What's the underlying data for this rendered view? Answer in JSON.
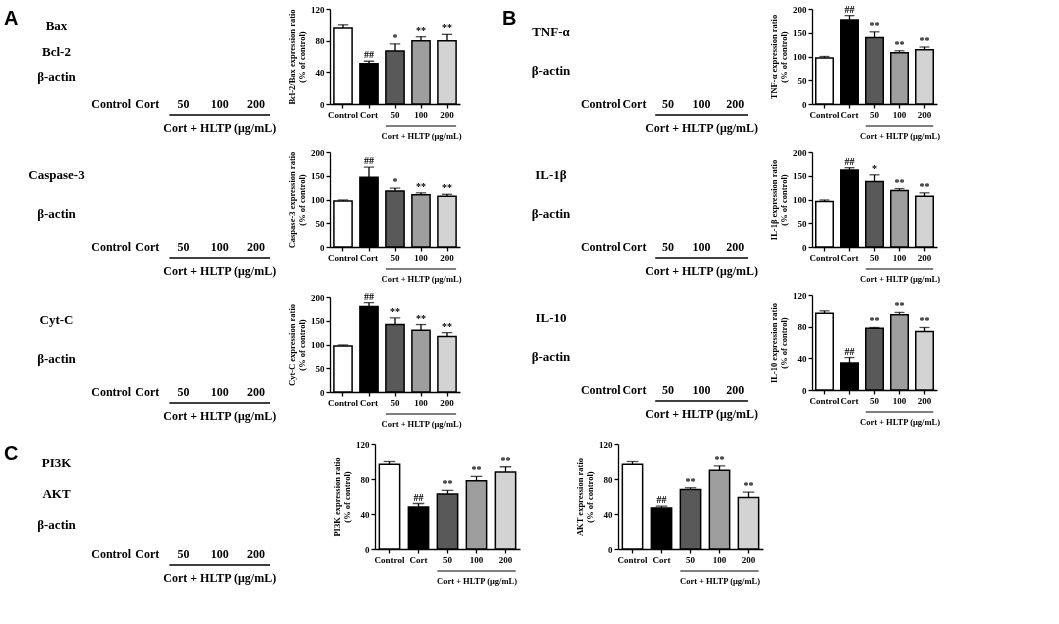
{
  "chart_data": [
    {
      "type": "other",
      "title": "A",
      "y_categories": [
        "Bax",
        "Bcl-2",
        "β-actin"
      ],
      "categories": [
        "Control",
        "Cort",
        "50",
        "100",
        "200"
      ],
      "xlabel": "Cort + HLTP (μg/mL)"
    },
    {
      "type": "bar",
      "ylabel": "Bcl-2/Bax expression ratio\n(% of control)",
      "xlabel": "Cort + HLTP (μg/mL)",
      "categories": [
        "Control",
        "Cort",
        "50",
        "100",
        "200"
      ],
      "values": [
        96,
        51,
        67,
        80,
        80
      ],
      "errors": [
        4,
        3,
        9,
        5,
        8
      ],
      "colors": [
        "#ffffff",
        "#000000",
        "#595959",
        "#9e9e9e",
        "#d3d3d3"
      ],
      "ylim": [
        0,
        120
      ],
      "yticks": [
        0,
        40,
        80,
        120
      ],
      "annotations": [
        {
          "text": "##",
          "x": "Cort",
          "y": 54
        },
        {
          "text": "*",
          "x": "50",
          "y": 76
        },
        {
          "text": "**",
          "x": "100",
          "y": 85
        },
        {
          "text": "**",
          "x": "200",
          "y": 88
        }
      ]
    },
    {
      "type": "other",
      "y_categories": [
        "Caspase-3",
        "β-actin"
      ],
      "categories": [
        "Control",
        "Cort",
        "50",
        "100",
        "200"
      ],
      "xlabel": "Cort + HLTP (μg/mL)"
    },
    {
      "type": "bar",
      "ylabel": "Caspase-3 expression ratio\n(% of control)",
      "xlabel": "Cort + HLTP (μg/mL)",
      "categories": [
        "Control",
        "Cort",
        "50",
        "100",
        "200"
      ],
      "values": [
        97,
        147,
        118,
        110,
        107
      ],
      "errors": [
        2,
        21,
        6,
        4,
        4
      ],
      "colors": [
        "#ffffff",
        "#000000",
        "#595959",
        "#9e9e9e",
        "#d3d3d3"
      ],
      "ylim": [
        0,
        200
      ],
      "yticks": [
        0,
        50,
        100,
        150,
        200
      ],
      "annotations": [
        {
          "text": "##",
          "x": "Cort",
          "y": 168
        },
        {
          "text": "*",
          "x": "50",
          "y": 124
        },
        {
          "text": "**",
          "x": "100",
          "y": 114
        },
        {
          "text": "**",
          "x": "200",
          "y": 111
        }
      ]
    },
    {
      "type": "other",
      "y_categories": [
        "Cyt-C",
        "β-actin"
      ],
      "categories": [
        "Control",
        "Cort",
        "50",
        "100",
        "200"
      ],
      "xlabel": "Cort + HLTP (μg/mL)"
    },
    {
      "type": "bar",
      "ylabel": "Cyt-C expression ratio\n(% of control)",
      "xlabel": "Cort + HLTP (μg/mL)",
      "categories": [
        "Control",
        "Cort",
        "50",
        "100",
        "200"
      ],
      "values": [
        97,
        180,
        142,
        130,
        117
      ],
      "errors": [
        2,
        8,
        14,
        12,
        8
      ],
      "colors": [
        "#ffffff",
        "#000000",
        "#595959",
        "#9e9e9e",
        "#d3d3d3"
      ],
      "ylim": [
        0,
        200
      ],
      "yticks": [
        0,
        50,
        100,
        150,
        200
      ],
      "annotations": [
        {
          "text": "##",
          "x": "Cort",
          "y": 188
        },
        {
          "text": "**",
          "x": "50",
          "y": 156
        },
        {
          "text": "**",
          "x": "100",
          "y": 142
        },
        {
          "text": "**",
          "x": "200",
          "y": 125
        }
      ]
    },
    {
      "type": "other",
      "title": "B",
      "y_categories": [
        "TNF-α",
        "β-actin"
      ],
      "categories": [
        "Control",
        "Cort",
        "50",
        "100",
        "200"
      ],
      "xlabel": "Cort + HLTP (μg/mL)"
    },
    {
      "type": "bar",
      "ylabel": "TNF-α expression ratio\n(% of control)",
      "xlabel": "Cort + HLTP (μg/mL)",
      "categories": [
        "Control",
        "Cort",
        "50",
        "100",
        "200"
      ],
      "values": [
        97,
        177,
        140,
        108,
        114
      ],
      "errors": [
        3,
        9,
        12,
        4,
        6
      ],
      "colors": [
        "#ffffff",
        "#000000",
        "#595959",
        "#9e9e9e",
        "#d3d3d3"
      ],
      "ylim": [
        0,
        200
      ],
      "yticks": [
        0,
        50,
        100,
        150,
        200
      ],
      "annotations": [
        {
          "text": "##",
          "x": "Cort",
          "y": 186
        },
        {
          "text": "**",
          "x": "50",
          "y": 152
        },
        {
          "text": "**",
          "x": "100",
          "y": 112
        },
        {
          "text": "**",
          "x": "200",
          "y": 120
        }
      ]
    },
    {
      "type": "other",
      "y_categories": [
        "IL-1β",
        "β-actin"
      ],
      "categories": [
        "Control",
        "Cort",
        "50",
        "100",
        "200"
      ],
      "xlabel": "Cort + HLTP (μg/mL)"
    },
    {
      "type": "bar",
      "ylabel": "IL-1β expression ratio\n(% of control)",
      "xlabel": "Cort + HLTP (μg/mL)",
      "categories": [
        "Control",
        "Cort",
        "50",
        "100",
        "200"
      ],
      "values": [
        96,
        162,
        138,
        119,
        107
      ],
      "errors": [
        3,
        5,
        14,
        4,
        7
      ],
      "colors": [
        "#ffffff",
        "#000000",
        "#595959",
        "#9e9e9e",
        "#d3d3d3"
      ],
      "ylim": [
        0,
        200
      ],
      "yticks": [
        0,
        50,
        100,
        150,
        200
      ],
      "annotations": [
        {
          "text": "##",
          "x": "Cort",
          "y": 167
        },
        {
          "text": "*",
          "x": "50",
          "y": 152
        },
        {
          "text": "**",
          "x": "100",
          "y": 123
        },
        {
          "text": "**",
          "x": "200",
          "y": 114
        }
      ]
    },
    {
      "type": "other",
      "y_categories": [
        "IL-10",
        "β-actin"
      ],
      "categories": [
        "Control",
        "Cort",
        "50",
        "100",
        "200"
      ],
      "xlabel": "Cort + HLTP (μg/mL)"
    },
    {
      "type": "bar",
      "ylabel": "IL-10 expression ratio\n(% of control)",
      "xlabel": "Cort + HLTP (μg/mL)",
      "categories": [
        "Control",
        "Cort",
        "50",
        "100",
        "200"
      ],
      "values": [
        97,
        34,
        78,
        95,
        74
      ],
      "errors": [
        3,
        7,
        1,
        3,
        5
      ],
      "colors": [
        "#ffffff",
        "#000000",
        "#595959",
        "#9e9e9e",
        "#d3d3d3"
      ],
      "ylim": [
        0,
        120
      ],
      "yticks": [
        0,
        40,
        80,
        120
      ],
      "annotations": [
        {
          "text": "##",
          "x": "Cort",
          "y": 41
        },
        {
          "text": "**",
          "x": "50",
          "y": 79
        },
        {
          "text": "**",
          "x": "100",
          "y": 98
        },
        {
          "text": "**",
          "x": "200",
          "y": 79
        }
      ]
    },
    {
      "type": "other",
      "title": "C",
      "y_categories": [
        "PI3K",
        "AKT",
        "β-actin"
      ],
      "categories": [
        "Control",
        "Cort",
        "50",
        "100",
        "200"
      ],
      "xlabel": "Cort + HLTP (μg/mL)"
    },
    {
      "type": "bar",
      "ylabel": "PI3K expression ratio\n(% of control)",
      "xlabel": "Cort + HLTP (μg/mL)",
      "categories": [
        "Control",
        "Cort",
        "50",
        "100",
        "200"
      ],
      "values": [
        97,
        48,
        63,
        78,
        88
      ],
      "errors": [
        3,
        4,
        4,
        5,
        6
      ],
      "colors": [
        "#ffffff",
        "#000000",
        "#595959",
        "#9e9e9e",
        "#d3d3d3"
      ],
      "ylim": [
        0,
        120
      ],
      "yticks": [
        0,
        40,
        80,
        120
      ],
      "annotations": [
        {
          "text": "##",
          "x": "Cort",
          "y": 52
        },
        {
          "text": "**",
          "x": "50",
          "y": 67
        },
        {
          "text": "**",
          "x": "100",
          "y": 83
        },
        {
          "text": "**",
          "x": "200",
          "y": 94
        }
      ]
    },
    {
      "type": "bar",
      "ylabel": "AKT expression ratio\n(% of control)",
      "xlabel": "Cort + HLTP (μg/mL)",
      "categories": [
        "Control",
        "Cort",
        "50",
        "100",
        "200"
      ],
      "values": [
        97,
        47,
        68,
        90,
        59
      ],
      "errors": [
        3,
        2,
        2,
        5,
        6
      ],
      "colors": [
        "#ffffff",
        "#000000",
        "#595959",
        "#9e9e9e",
        "#d3d3d3"
      ],
      "ylim": [
        0,
        120
      ],
      "yticks": [
        0,
        40,
        80,
        120
      ],
      "annotations": [
        {
          "text": "##",
          "x": "Cort",
          "y": 49
        },
        {
          "text": "**",
          "x": "50",
          "y": 70
        },
        {
          "text": "**",
          "x": "100",
          "y": 95
        },
        {
          "text": "**",
          "x": "200",
          "y": 65
        }
      ]
    }
  ]
}
